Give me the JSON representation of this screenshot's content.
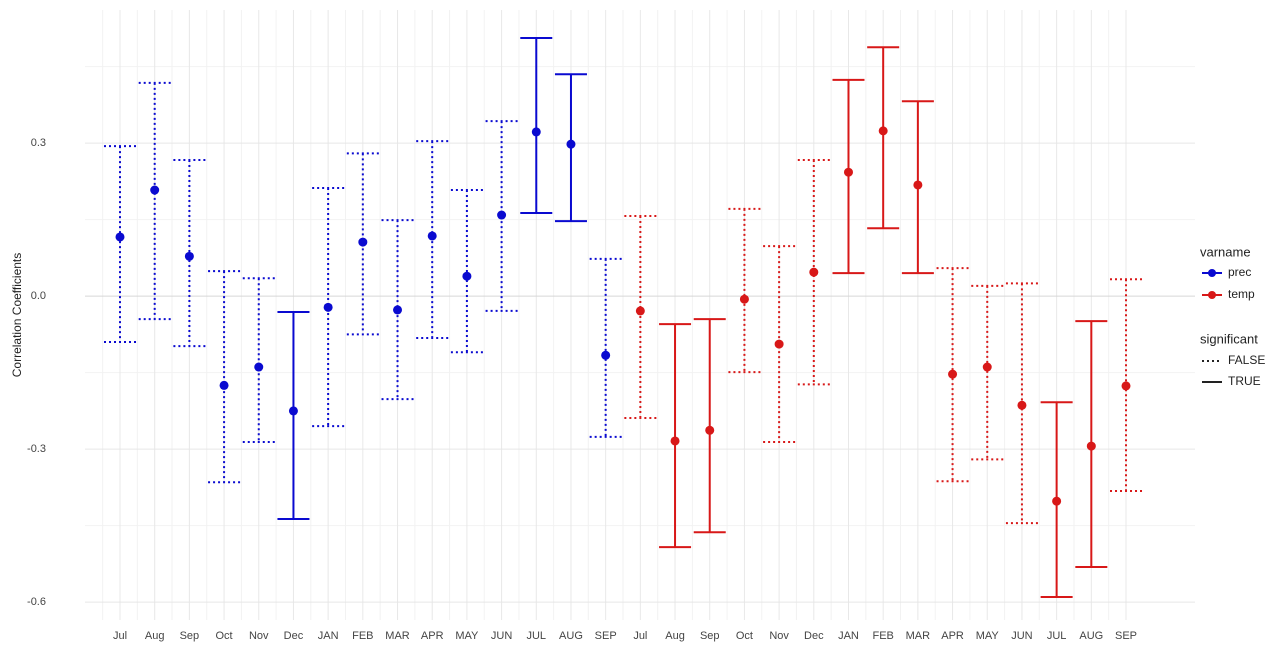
{
  "chart_data": {
    "type": "errorbar",
    "y_label": "Correlation Coefficients",
    "categories": [
      "Jul",
      "Aug",
      "Sep",
      "Oct",
      "Nov",
      "Dec",
      "JAN",
      "FEB",
      "MAR",
      "APR",
      "MAY",
      "JUN",
      "JUL",
      "AUG",
      "SEP",
      "Jul",
      "Aug",
      "Sep",
      "Oct",
      "Nov",
      "Dec",
      "JAN",
      "FEB",
      "MAR",
      "APR",
      "MAY",
      "JUN",
      "JUL",
      "AUG",
      "SEP"
    ],
    "ylim": [
      -0.635,
      0.561
    ],
    "yticks": [
      {
        "value": -0.6,
        "label": "-0.6"
      },
      {
        "value": -0.3,
        "label": "-0.3"
      },
      {
        "value": 0,
        "label": "0.0"
      },
      {
        "value": 0.3,
        "label": "0.3"
      }
    ],
    "minor_yticks": [
      -0.45,
      -0.15,
      0.15,
      0.45
    ],
    "grid": true,
    "legend_title": "varname",
    "linetype_legend": {
      "title": "significant",
      "labels": [
        "FALSE",
        "TRUE"
      ]
    },
    "series": [
      {
        "name": "prec",
        "color": "#0a0ad0",
        "values": [
          0.116,
          0.208,
          0.078,
          -0.175,
          -0.139,
          -0.225,
          -0.022,
          0.106,
          -0.027,
          0.118,
          0.039,
          0.159,
          0.322,
          0.298,
          -0.116,
          null,
          null,
          null,
          null,
          null,
          null,
          null,
          null,
          null,
          null,
          null,
          null,
          null,
          null,
          null
        ],
        "lower": [
          -0.09,
          -0.045,
          -0.098,
          -0.365,
          -0.286,
          -0.437,
          -0.255,
          -0.075,
          -0.202,
          -0.082,
          -0.11,
          -0.029,
          0.163,
          0.147,
          -0.276,
          null,
          null,
          null,
          null,
          null,
          null,
          null,
          null,
          null,
          null,
          null,
          null,
          null,
          null,
          null
        ],
        "upper": [
          0.294,
          0.418,
          0.267,
          0.049,
          0.035,
          -0.031,
          0.212,
          0.28,
          0.149,
          0.304,
          0.208,
          0.343,
          0.506,
          0.435,
          0.073,
          null,
          null,
          null,
          null,
          null,
          null,
          null,
          null,
          null,
          null,
          null,
          null,
          null,
          null,
          null
        ],
        "significant": [
          false,
          false,
          false,
          false,
          false,
          true,
          false,
          false,
          false,
          false,
          false,
          false,
          true,
          true,
          false,
          null,
          null,
          null,
          null,
          null,
          null,
          null,
          null,
          null,
          null,
          null,
          null,
          null,
          null,
          null
        ]
      },
      {
        "name": "temp",
        "color": "#d81818",
        "values": [
          null,
          null,
          null,
          null,
          null,
          null,
          null,
          null,
          null,
          null,
          null,
          null,
          null,
          null,
          null,
          -0.029,
          -0.284,
          -0.263,
          -0.006,
          -0.094,
          0.047,
          0.243,
          0.324,
          0.218,
          -0.153,
          -0.139,
          -0.214,
          -0.402,
          -0.294,
          -0.176
        ],
        "lower": [
          null,
          null,
          null,
          null,
          null,
          null,
          null,
          null,
          null,
          null,
          null,
          null,
          null,
          null,
          null,
          -0.239,
          -0.492,
          -0.463,
          -0.149,
          -0.286,
          -0.173,
          0.045,
          0.133,
          0.045,
          -0.363,
          -0.32,
          -0.445,
          -0.59,
          -0.531,
          -0.382
        ],
        "upper": [
          null,
          null,
          null,
          null,
          null,
          null,
          null,
          null,
          null,
          null,
          null,
          null,
          null,
          null,
          null,
          0.157,
          -0.055,
          -0.045,
          0.171,
          0.098,
          0.267,
          0.424,
          0.488,
          0.382,
          0.055,
          0.02,
          0.025,
          -0.208,
          -0.049,
          0.033
        ],
        "significant": [
          null,
          null,
          null,
          null,
          null,
          null,
          null,
          null,
          null,
          null,
          null,
          null,
          null,
          null,
          null,
          false,
          true,
          true,
          false,
          false,
          false,
          true,
          true,
          true,
          false,
          false,
          false,
          true,
          true,
          false
        ]
      }
    ]
  }
}
